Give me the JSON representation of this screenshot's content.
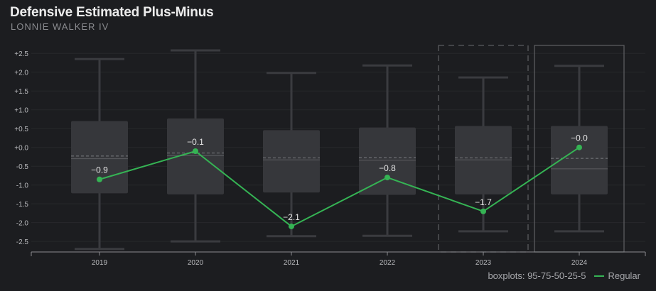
{
  "title": "Defensive Estimated Plus-Minus",
  "subtitle": "LONNIE WALKER IV",
  "footer": {
    "boxplot_note": "boxplots: 95-75-50-25-5",
    "legend_label": "Regular"
  },
  "colors": {
    "background": "#1c1d20",
    "box_fill": "#36373b",
    "whisker": "#3a3b3f",
    "line": "#35b454",
    "highlight_border": "#5a5b5f"
  },
  "chart_data": {
    "type": "line",
    "categories": [
      "2019",
      "2020",
      "2021",
      "2022",
      "2023",
      "2024"
    ],
    "y_ticks": [
      "+2.5",
      "+2.0",
      "+1.5",
      "+1.0",
      "+0.5",
      "+0.0",
      "-0.5",
      "-1.0",
      "-1.5",
      "-2.0",
      "-2.5"
    ],
    "ylim": [
      -2.78,
      2.75
    ],
    "series": [
      {
        "name": "Regular",
        "values": [
          -0.85,
          -0.1,
          -2.1,
          -0.8,
          -1.7,
          -0.0
        ],
        "labels": [
          "−0.9",
          "−0.1",
          "−2.1",
          "−0.8",
          "−1.7",
          "−0.0"
        ]
      }
    ],
    "boxplots": [
      {
        "p5": -2.7,
        "p25": -1.22,
        "median": -0.3,
        "mean": -0.23,
        "p75": 0.7,
        "p95": 2.35
      },
      {
        "p5": -2.5,
        "p25": -1.25,
        "median": -0.22,
        "mean": -0.15,
        "p75": 0.77,
        "p95": 2.58
      },
      {
        "p5": -2.36,
        "p25": -1.2,
        "median": -0.33,
        "mean": -0.28,
        "p75": 0.46,
        "p95": 1.98
      },
      {
        "p5": -2.35,
        "p25": -1.26,
        "median": -0.34,
        "mean": -0.27,
        "p75": 0.53,
        "p95": 2.18
      },
      {
        "p5": -2.23,
        "p25": -1.25,
        "median": -0.33,
        "mean": -0.28,
        "p75": 0.57,
        "p95": 1.86
      },
      {
        "p5": -2.23,
        "p25": -1.25,
        "median": -0.57,
        "mean": -0.29,
        "p75": 0.57,
        "p95": 2.17
      }
    ],
    "highlight_dashed": "2023",
    "highlight_solid": "2024",
    "grid": true,
    "legend_position": "bottom-right"
  }
}
